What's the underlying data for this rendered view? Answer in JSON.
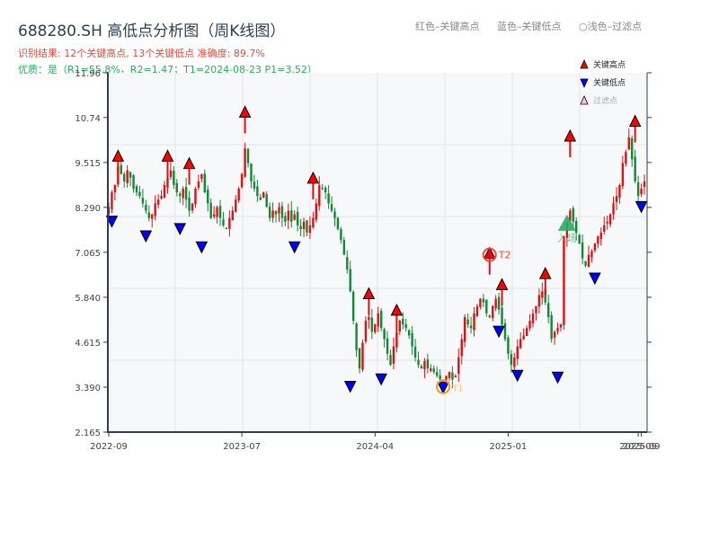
{
  "header": {
    "title": "688280.SH 高低点分析图（周K线图）",
    "result_line": "识别结果: 12个关键高点, 13个关键低点   准确度: 89.7%",
    "quality_line": "优质：是（R1=55.8%，R2=1.47；T1=2024-08-23 P1=3.52）"
  },
  "top_legend": {
    "red": "红色–关键高点",
    "blue": "蓝色–关键低点",
    "light": "○浅色–过滤点"
  },
  "legend": {
    "items": [
      {
        "label": "关键高点",
        "marker": "triangle-up",
        "color": "#ff0000"
      },
      {
        "label": "关键低点",
        "marker": "triangle-down",
        "color": "#0000ff"
      },
      {
        "label": "过滤点",
        "marker": "triangle-up-light",
        "color": "#ffcccc"
      }
    ]
  },
  "annotations": {
    "t1": "T1",
    "t2": "T2",
    "entry": "入场"
  },
  "colors": {
    "up": "#dd1111",
    "down": "#118833",
    "high_marker": "#ff0000",
    "low_marker": "#0000ff",
    "t1_ring": "#f39c12",
    "t2_ring": "#e74c3c",
    "entry": "#27ae60",
    "plot_bg": "#f7f8fa",
    "grid": "#e2e4e8",
    "axis": "#2c3e50"
  },
  "chart_data": {
    "type": "candlestick",
    "title": "688280.SH 高低点分析图（周K线图）",
    "xlabel": "",
    "ylabel": "",
    "ylim": [
      2.165,
      11.96
    ],
    "yticks": [
      2.165,
      3.39,
      4.615,
      5.84,
      7.065,
      8.29,
      9.515,
      10.74,
      11.96
    ],
    "ytick_labels": [
      "2.165",
      "3.390",
      "4.615",
      "5.840",
      "7.065",
      "8.290",
      "9.515",
      "10.74",
      "11.96"
    ],
    "xticks": [
      {
        "label": "2022-09",
        "index": 0
      },
      {
        "label": "2023-07",
        "index": 43
      },
      {
        "label": "2024-04",
        "index": 86
      },
      {
        "label": "2025-01",
        "index": 129
      },
      {
        "label": "2025-09",
        "index": 171
      },
      {
        "label": "2025-09",
        "index": 172
      }
    ],
    "grid": true,
    "legend_position": "upper right",
    "closes": [
      8.3,
      8.7,
      8.9,
      9.4,
      9.2,
      9.0,
      9.3,
      9.1,
      8.8,
      8.7,
      8.6,
      8.4,
      8.2,
      8.0,
      8.1,
      8.4,
      8.5,
      8.6,
      8.9,
      9.1,
      9.3,
      8.9,
      8.7,
      8.6,
      8.8,
      8.5,
      8.2,
      8.4,
      8.8,
      9.0,
      9.2,
      8.7,
      8.4,
      8.0,
      8.1,
      8.3,
      8.0,
      7.8,
      7.7,
      8.0,
      8.2,
      8.5,
      8.8,
      9.2,
      9.9,
      9.5,
      9.0,
      8.8,
      8.6,
      8.5,
      8.7,
      8.3,
      8.0,
      8.2,
      8.1,
      8.3,
      8.0,
      7.9,
      8.2,
      7.9,
      8.1,
      7.8,
      7.7,
      7.9,
      7.6,
      7.8,
      8.0,
      8.4,
      8.9,
      8.8,
      8.7,
      8.4,
      8.2,
      8.0,
      7.7,
      7.4,
      7.0,
      6.6,
      6.0,
      5.2,
      4.4,
      3.9,
      4.6,
      5.2,
      5.3,
      4.9,
      5.1,
      5.4,
      5.0,
      4.7,
      4.3,
      4.0,
      4.5,
      4.9,
      5.2,
      5.1,
      5.0,
      4.8,
      4.5,
      4.2,
      4.0,
      3.9,
      4.1,
      3.9,
      3.9,
      3.8,
      3.7,
      3.6,
      3.6,
      3.7,
      3.8,
      3.6,
      3.7,
      4.2,
      4.7,
      5.3,
      5.1,
      5.0,
      5.4,
      5.6,
      5.8,
      5.7,
      5.4,
      5.3,
      5.6,
      5.8,
      5.5,
      5.1,
      4.7,
      4.3,
      4.0,
      4.2,
      4.5,
      4.7,
      4.8,
      5.0,
      5.2,
      5.4,
      5.6,
      5.9,
      6.0,
      5.7,
      5.3,
      4.7,
      4.9,
      5.0,
      5.1,
      7.5,
      7.9,
      8.2,
      7.9,
      7.6,
      7.3,
      6.9,
      6.7,
      7.0,
      7.1,
      7.3,
      7.5,
      7.6,
      7.8,
      7.9,
      8.1,
      8.4,
      8.6,
      8.9,
      9.5,
      9.8,
      10.2,
      9.6,
      9.0,
      8.6,
      8.8,
      9.0
    ],
    "key_highs": [
      {
        "index": 3,
        "price": 9.55
      },
      {
        "index": 19,
        "price": 9.55
      },
      {
        "index": 26,
        "price": 9.35
      },
      {
        "index": 44,
        "price": 10.75
      },
      {
        "index": 66,
        "price": 8.95
      },
      {
        "index": 84,
        "price": 5.8
      },
      {
        "index": 93,
        "price": 5.35
      },
      {
        "index": 123,
        "price": 6.9,
        "label": "T2"
      },
      {
        "index": 127,
        "price": 6.05
      },
      {
        "index": 141,
        "price": 6.35
      },
      {
        "index": 149,
        "price": 10.1
      },
      {
        "index": 170,
        "price": 10.5
      }
    ],
    "key_lows": [
      {
        "index": 1,
        "price": 8.05
      },
      {
        "index": 12,
        "price": 7.65
      },
      {
        "index": 23,
        "price": 7.85
      },
      {
        "index": 30,
        "price": 7.35
      },
      {
        "index": 60,
        "price": 7.35
      },
      {
        "index": 78,
        "price": 3.55
      },
      {
        "index": 88,
        "price": 3.75
      },
      {
        "index": 108,
        "price": 3.52,
        "label": "T1"
      },
      {
        "index": 126,
        "price": 5.05
      },
      {
        "index": 132,
        "price": 3.85
      },
      {
        "index": 145,
        "price": 3.8
      },
      {
        "index": 157,
        "price": 6.5
      },
      {
        "index": 172,
        "price": 8.45
      }
    ],
    "entry": {
      "index": 148,
      "price": 7.85,
      "label": "入场"
    }
  }
}
